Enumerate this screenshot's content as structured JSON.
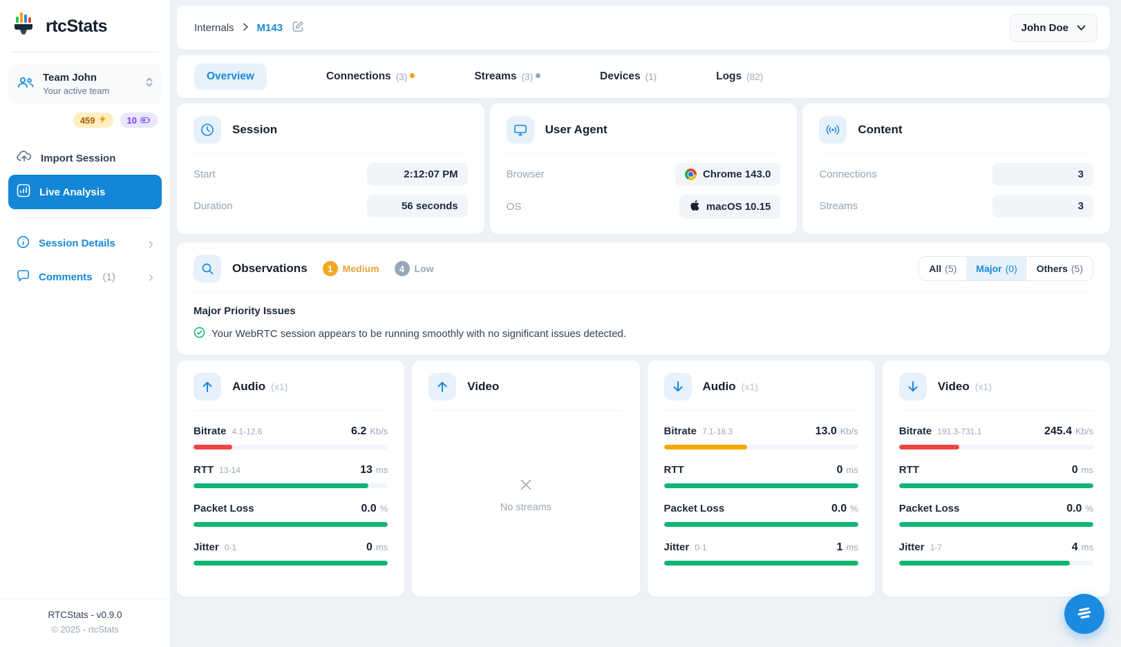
{
  "app": {
    "name": "rtcStats",
    "footer_line1": "RTCStats - v0.9.0",
    "footer_line2": "© 2025 - rtcStats"
  },
  "sidebar": {
    "team": {
      "name": "Team John",
      "subtitle": "Your active team"
    },
    "badges": [
      {
        "icon": "bolt-icon",
        "value": "459",
        "color": "#b45309"
      },
      {
        "icon": "battery-icon",
        "value": "10",
        "color": "#7c3aed"
      }
    ],
    "items": {
      "import": "Import Session",
      "live": "Live Analysis",
      "details": "Session Details",
      "comments": "Comments",
      "comments_count": "(1)"
    }
  },
  "header": {
    "breadcrumb": {
      "root": "Internals",
      "current": "M143"
    },
    "user_menu": "John Doe"
  },
  "tabs": [
    {
      "label": "Overview",
      "active": true
    },
    {
      "label": "Connections",
      "count": "(3)",
      "dot_color": "#f59e0b"
    },
    {
      "label": "Streams",
      "count": "(3)",
      "dot_color": "#94a3b8"
    },
    {
      "label": "Devices",
      "count": "(1)"
    },
    {
      "label": "Logs",
      "count": "(82)"
    }
  ],
  "info_cards": {
    "session": {
      "title": "Session",
      "rows": [
        {
          "label": "Start",
          "value": "2:12:07 PM"
        },
        {
          "label": "Duration",
          "value": "56 seconds"
        }
      ]
    },
    "user_agent": {
      "title": "User Agent",
      "rows": [
        {
          "label": "Browser",
          "value": "Chrome 143.0",
          "icon": "chrome-icon"
        },
        {
          "label": "OS",
          "value": "macOS 10.15",
          "icon": "apple-icon"
        }
      ]
    },
    "content": {
      "title": "Content",
      "rows": [
        {
          "label": "Connections",
          "value": "3"
        },
        {
          "label": "Streams",
          "value": "3"
        }
      ]
    }
  },
  "observations": {
    "title": "Observations",
    "severities": [
      {
        "count": "1",
        "label": "Medium",
        "color": "#f5a623"
      },
      {
        "count": "4",
        "label": "Low",
        "color": "#9aa7b8"
      }
    ],
    "filters": [
      {
        "label": "All",
        "count": "(5)"
      },
      {
        "label": "Major",
        "count": "(0)",
        "active": true
      },
      {
        "label": "Others",
        "count": "(5)"
      }
    ],
    "section_title": "Major Priority Issues",
    "message": "Your WebRTC session appears to be running smoothly with no significant issues detected."
  },
  "streams": [
    {
      "direction": "upload",
      "title": "Audio",
      "mult": "(x1)",
      "metrics": [
        {
          "label": "Bitrate",
          "range": "4.1-12.6",
          "value": "6.2",
          "unit": "Kb/s",
          "pct": 20,
          "color": "#ef4444"
        },
        {
          "label": "RTT",
          "range": "13-14",
          "value": "13",
          "unit": "ms",
          "pct": 90,
          "color": "#12b573"
        },
        {
          "label": "Packet Loss",
          "value": "0.0",
          "unit": "%",
          "pct": 100,
          "color": "#12b573"
        },
        {
          "label": "Jitter",
          "range": "0-1",
          "value": "0",
          "unit": "ms",
          "pct": 100,
          "color": "#12b573"
        }
      ]
    },
    {
      "direction": "upload",
      "title": "Video",
      "empty_text": "No streams"
    },
    {
      "direction": "download",
      "title": "Audio",
      "mult": "(x1)",
      "metrics": [
        {
          "label": "Bitrate",
          "range": "7.1-18.3",
          "value": "13.0",
          "unit": "Kb/s",
          "pct": 43,
          "color": "#f5a800"
        },
        {
          "label": "RTT",
          "value": "0",
          "unit": "ms",
          "pct": 100,
          "color": "#12b573"
        },
        {
          "label": "Packet Loss",
          "value": "0.0",
          "unit": "%",
          "pct": 100,
          "color": "#12b573"
        },
        {
          "label": "Jitter",
          "range": "0-1",
          "value": "1",
          "unit": "ms",
          "pct": 100,
          "color": "#12b573"
        }
      ]
    },
    {
      "direction": "download",
      "title": "Video",
      "mult": "(x1)",
      "metrics": [
        {
          "label": "Bitrate",
          "range": "191.3-731.1",
          "value": "245.4",
          "unit": "Kb/s",
          "pct": 31,
          "color": "#ef4444"
        },
        {
          "label": "RTT",
          "value": "0",
          "unit": "ms",
          "pct": 100,
          "color": "#12b573"
        },
        {
          "label": "Packet Loss",
          "value": "0.0",
          "unit": "%",
          "pct": 100,
          "color": "#12b573"
        },
        {
          "label": "Jitter",
          "range": "1-7",
          "value": "4",
          "unit": "ms",
          "pct": 88,
          "color": "#12b573"
        }
      ]
    }
  ],
  "colors": {
    "accent_blue": "#1789d6",
    "green": "#12b573",
    "red": "#ef4444",
    "amber": "#f5a800"
  }
}
